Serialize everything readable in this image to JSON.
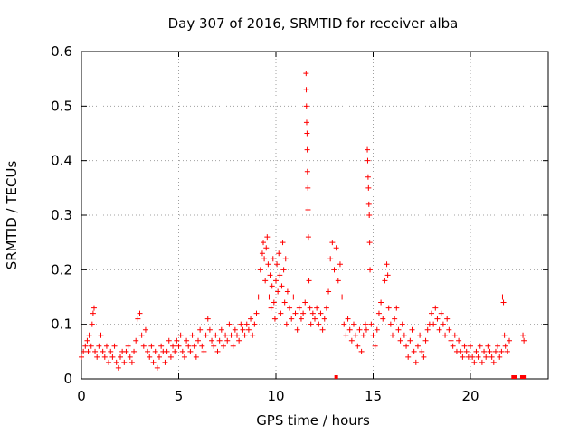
{
  "chart_data": {
    "type": "scatter",
    "title": "Day 307 of 2016, SRMTID for receiver alba",
    "xlabel": "GPS time / hours",
    "ylabel": "SRMTID / TECUs",
    "xlim": [
      0,
      24
    ],
    "ylim": [
      0,
      0.6
    ],
    "x_ticks": [
      0,
      5,
      10,
      15,
      20
    ],
    "x_tick_labels": [
      "0",
      "5",
      "10",
      "15",
      "20"
    ],
    "y_ticks": [
      0,
      0.1,
      0.2,
      0.3,
      0.4,
      0.5,
      0.6
    ],
    "y_tick_labels": [
      "0",
      "0.1",
      "0.2",
      "0.3",
      "0.4",
      "0.5",
      "0.6"
    ],
    "grid": true,
    "marker": "plus",
    "color": "#ff0000",
    "series": [
      {
        "name": "SRMTID",
        "points": [
          [
            0.0,
            0.04
          ],
          [
            0.1,
            0.05
          ],
          [
            0.2,
            0.06
          ],
          [
            0.3,
            0.07
          ],
          [
            0.35,
            0.05
          ],
          [
            0.4,
            0.08
          ],
          [
            0.5,
            0.06
          ],
          [
            0.55,
            0.1
          ],
          [
            0.6,
            0.12
          ],
          [
            0.65,
            0.13
          ],
          [
            0.7,
            0.05
          ],
          [
            0.8,
            0.04
          ],
          [
            0.9,
            0.06
          ],
          [
            1.0,
            0.08
          ],
          [
            1.1,
            0.05
          ],
          [
            1.2,
            0.04
          ],
          [
            1.3,
            0.06
          ],
          [
            1.4,
            0.03
          ],
          [
            1.5,
            0.05
          ],
          [
            1.6,
            0.04
          ],
          [
            1.7,
            0.06
          ],
          [
            1.8,
            0.03
          ],
          [
            1.9,
            0.02
          ],
          [
            2.0,
            0.04
          ],
          [
            2.1,
            0.05
          ],
          [
            2.2,
            0.03
          ],
          [
            2.3,
            0.05
          ],
          [
            2.4,
            0.06
          ],
          [
            2.5,
            0.04
          ],
          [
            2.6,
            0.03
          ],
          [
            2.7,
            0.05
          ],
          [
            2.8,
            0.07
          ],
          [
            2.9,
            0.11
          ],
          [
            3.0,
            0.12
          ],
          [
            3.1,
            0.08
          ],
          [
            3.2,
            0.06
          ],
          [
            3.3,
            0.09
          ],
          [
            3.4,
            0.05
          ],
          [
            3.5,
            0.04
          ],
          [
            3.6,
            0.06
          ],
          [
            3.7,
            0.03
          ],
          [
            3.8,
            0.05
          ],
          [
            3.9,
            0.02
          ],
          [
            4.0,
            0.04
          ],
          [
            4.1,
            0.06
          ],
          [
            4.2,
            0.05
          ],
          [
            4.3,
            0.03
          ],
          [
            4.4,
            0.05
          ],
          [
            4.5,
            0.07
          ],
          [
            4.6,
            0.04
          ],
          [
            4.7,
            0.06
          ],
          [
            4.8,
            0.05
          ],
          [
            4.9,
            0.07
          ],
          [
            5.0,
            0.06
          ],
          [
            5.1,
            0.08
          ],
          [
            5.2,
            0.05
          ],
          [
            5.3,
            0.04
          ],
          [
            5.4,
            0.07
          ],
          [
            5.5,
            0.06
          ],
          [
            5.6,
            0.05
          ],
          [
            5.7,
            0.08
          ],
          [
            5.8,
            0.06
          ],
          [
            5.9,
            0.04
          ],
          [
            6.0,
            0.07
          ],
          [
            6.1,
            0.09
          ],
          [
            6.2,
            0.06
          ],
          [
            6.3,
            0.05
          ],
          [
            6.4,
            0.08
          ],
          [
            6.5,
            0.11
          ],
          [
            6.6,
            0.09
          ],
          [
            6.7,
            0.07
          ],
          [
            6.8,
            0.06
          ],
          [
            6.9,
            0.08
          ],
          [
            7.0,
            0.05
          ],
          [
            7.1,
            0.07
          ],
          [
            7.2,
            0.09
          ],
          [
            7.3,
            0.06
          ],
          [
            7.4,
            0.08
          ],
          [
            7.5,
            0.07
          ],
          [
            7.6,
            0.1
          ],
          [
            7.7,
            0.08
          ],
          [
            7.8,
            0.06
          ],
          [
            7.9,
            0.09
          ],
          [
            8.0,
            0.08
          ],
          [
            8.1,
            0.07
          ],
          [
            8.2,
            0.1
          ],
          [
            8.3,
            0.09
          ],
          [
            8.4,
            0.08
          ],
          [
            8.5,
            0.1
          ],
          [
            8.6,
            0.09
          ],
          [
            8.7,
            0.11
          ],
          [
            8.8,
            0.08
          ],
          [
            8.9,
            0.1
          ],
          [
            9.0,
            0.12
          ],
          [
            9.1,
            0.15
          ],
          [
            9.2,
            0.2
          ],
          [
            9.3,
            0.23
          ],
          [
            9.35,
            0.25
          ],
          [
            9.4,
            0.22
          ],
          [
            9.45,
            0.18
          ],
          [
            9.5,
            0.24
          ],
          [
            9.55,
            0.26
          ],
          [
            9.6,
            0.21
          ],
          [
            9.65,
            0.15
          ],
          [
            9.7,
            0.19
          ],
          [
            9.75,
            0.13
          ],
          [
            9.8,
            0.17
          ],
          [
            9.85,
            0.22
          ],
          [
            9.9,
            0.14
          ],
          [
            9.95,
            0.11
          ],
          [
            10.0,
            0.18
          ],
          [
            10.05,
            0.21
          ],
          [
            10.1,
            0.16
          ],
          [
            10.15,
            0.23
          ],
          [
            10.2,
            0.19
          ],
          [
            10.25,
            0.12
          ],
          [
            10.3,
            0.17
          ],
          [
            10.35,
            0.25
          ],
          [
            10.4,
            0.2
          ],
          [
            10.45,
            0.14
          ],
          [
            10.5,
            0.22
          ],
          [
            10.55,
            0.1
          ],
          [
            10.6,
            0.16
          ],
          [
            10.7,
            0.13
          ],
          [
            10.8,
            0.11
          ],
          [
            10.9,
            0.15
          ],
          [
            11.0,
            0.12
          ],
          [
            11.1,
            0.09
          ],
          [
            11.2,
            0.13
          ],
          [
            11.3,
            0.11
          ],
          [
            11.4,
            0.12
          ],
          [
            11.5,
            0.14
          ],
          [
            11.55,
            0.56
          ],
          [
            11.56,
            0.53
          ],
          [
            11.57,
            0.5
          ],
          [
            11.58,
            0.47
          ],
          [
            11.6,
            0.45
          ],
          [
            11.61,
            0.42
          ],
          [
            11.62,
            0.38
          ],
          [
            11.64,
            0.35
          ],
          [
            11.65,
            0.31
          ],
          [
            11.67,
            0.26
          ],
          [
            11.7,
            0.18
          ],
          [
            11.75,
            0.13
          ],
          [
            11.8,
            0.1
          ],
          [
            11.9,
            0.12
          ],
          [
            12.0,
            0.11
          ],
          [
            12.1,
            0.13
          ],
          [
            12.2,
            0.1
          ],
          [
            12.3,
            0.12
          ],
          [
            12.4,
            0.09
          ],
          [
            12.5,
            0.11
          ],
          [
            12.6,
            0.13
          ],
          [
            12.7,
            0.16
          ],
          [
            12.8,
            0.22
          ],
          [
            12.9,
            0.25
          ],
          [
            13.0,
            0.2
          ],
          [
            13.1,
            0.24
          ],
          [
            13.2,
            0.18
          ],
          [
            13.3,
            0.21
          ],
          [
            13.4,
            0.15
          ],
          [
            13.5,
            0.1
          ],
          [
            13.6,
            0.08
          ],
          [
            13.7,
            0.11
          ],
          [
            13.8,
            0.09
          ],
          [
            13.9,
            0.07
          ],
          [
            14.0,
            0.1
          ],
          [
            14.1,
            0.08
          ],
          [
            14.2,
            0.06
          ],
          [
            14.3,
            0.09
          ],
          [
            14.4,
            0.05
          ],
          [
            14.5,
            0.08
          ],
          [
            14.6,
            0.1
          ],
          [
            14.65,
            0.09
          ],
          [
            14.7,
            0.42
          ],
          [
            14.72,
            0.4
          ],
          [
            14.74,
            0.37
          ],
          [
            14.76,
            0.35
          ],
          [
            14.78,
            0.32
          ],
          [
            14.8,
            0.3
          ],
          [
            14.82,
            0.25
          ],
          [
            14.84,
            0.2
          ],
          [
            14.9,
            0.1
          ],
          [
            15.0,
            0.08
          ],
          [
            15.1,
            0.06
          ],
          [
            15.2,
            0.09
          ],
          [
            15.3,
            0.12
          ],
          [
            15.4,
            0.14
          ],
          [
            15.5,
            0.11
          ],
          [
            15.6,
            0.18
          ],
          [
            15.7,
            0.21
          ],
          [
            15.75,
            0.19
          ],
          [
            15.8,
            0.13
          ],
          [
            15.9,
            0.1
          ],
          [
            16.0,
            0.08
          ],
          [
            16.1,
            0.11
          ],
          [
            16.2,
            0.13
          ],
          [
            16.3,
            0.09
          ],
          [
            16.4,
            0.07
          ],
          [
            16.5,
            0.1
          ],
          [
            16.6,
            0.08
          ],
          [
            16.7,
            0.06
          ],
          [
            16.8,
            0.04
          ],
          [
            16.9,
            0.07
          ],
          [
            17.0,
            0.09
          ],
          [
            17.1,
            0.05
          ],
          [
            17.2,
            0.03
          ],
          [
            17.3,
            0.06
          ],
          [
            17.4,
            0.08
          ],
          [
            17.5,
            0.05
          ],
          [
            17.6,
            0.04
          ],
          [
            17.7,
            0.07
          ],
          [
            17.8,
            0.09
          ],
          [
            17.9,
            0.1
          ],
          [
            18.0,
            0.12
          ],
          [
            18.1,
            0.1
          ],
          [
            18.2,
            0.13
          ],
          [
            18.3,
            0.11
          ],
          [
            18.4,
            0.09
          ],
          [
            18.5,
            0.12
          ],
          [
            18.6,
            0.1
          ],
          [
            18.7,
            0.08
          ],
          [
            18.8,
            0.11
          ],
          [
            18.9,
            0.09
          ],
          [
            19.0,
            0.07
          ],
          [
            19.1,
            0.06
          ],
          [
            19.2,
            0.08
          ],
          [
            19.3,
            0.05
          ],
          [
            19.4,
            0.07
          ],
          [
            19.5,
            0.05
          ],
          [
            19.6,
            0.04
          ],
          [
            19.7,
            0.06
          ],
          [
            19.8,
            0.05
          ],
          [
            19.9,
            0.04
          ],
          [
            20.0,
            0.06
          ],
          [
            20.1,
            0.04
          ],
          [
            20.2,
            0.03
          ],
          [
            20.3,
            0.05
          ],
          [
            20.4,
            0.04
          ],
          [
            20.5,
            0.06
          ],
          [
            20.6,
            0.03
          ],
          [
            20.7,
            0.05
          ],
          [
            20.8,
            0.04
          ],
          [
            20.9,
            0.06
          ],
          [
            21.0,
            0.05
          ],
          [
            21.1,
            0.04
          ],
          [
            21.2,
            0.03
          ],
          [
            21.3,
            0.05
          ],
          [
            21.4,
            0.06
          ],
          [
            21.5,
            0.04
          ],
          [
            21.6,
            0.05
          ],
          [
            21.65,
            0.15
          ],
          [
            21.7,
            0.14
          ],
          [
            21.75,
            0.08
          ],
          [
            21.8,
            0.06
          ],
          [
            21.9,
            0.05
          ],
          [
            22.0,
            0.07
          ],
          [
            22.7,
            0.08
          ],
          [
            22.75,
            0.07
          ]
        ]
      }
    ],
    "ground_markers": [
      13.1,
      22.2,
      22.3,
      22.65,
      22.75
    ]
  }
}
